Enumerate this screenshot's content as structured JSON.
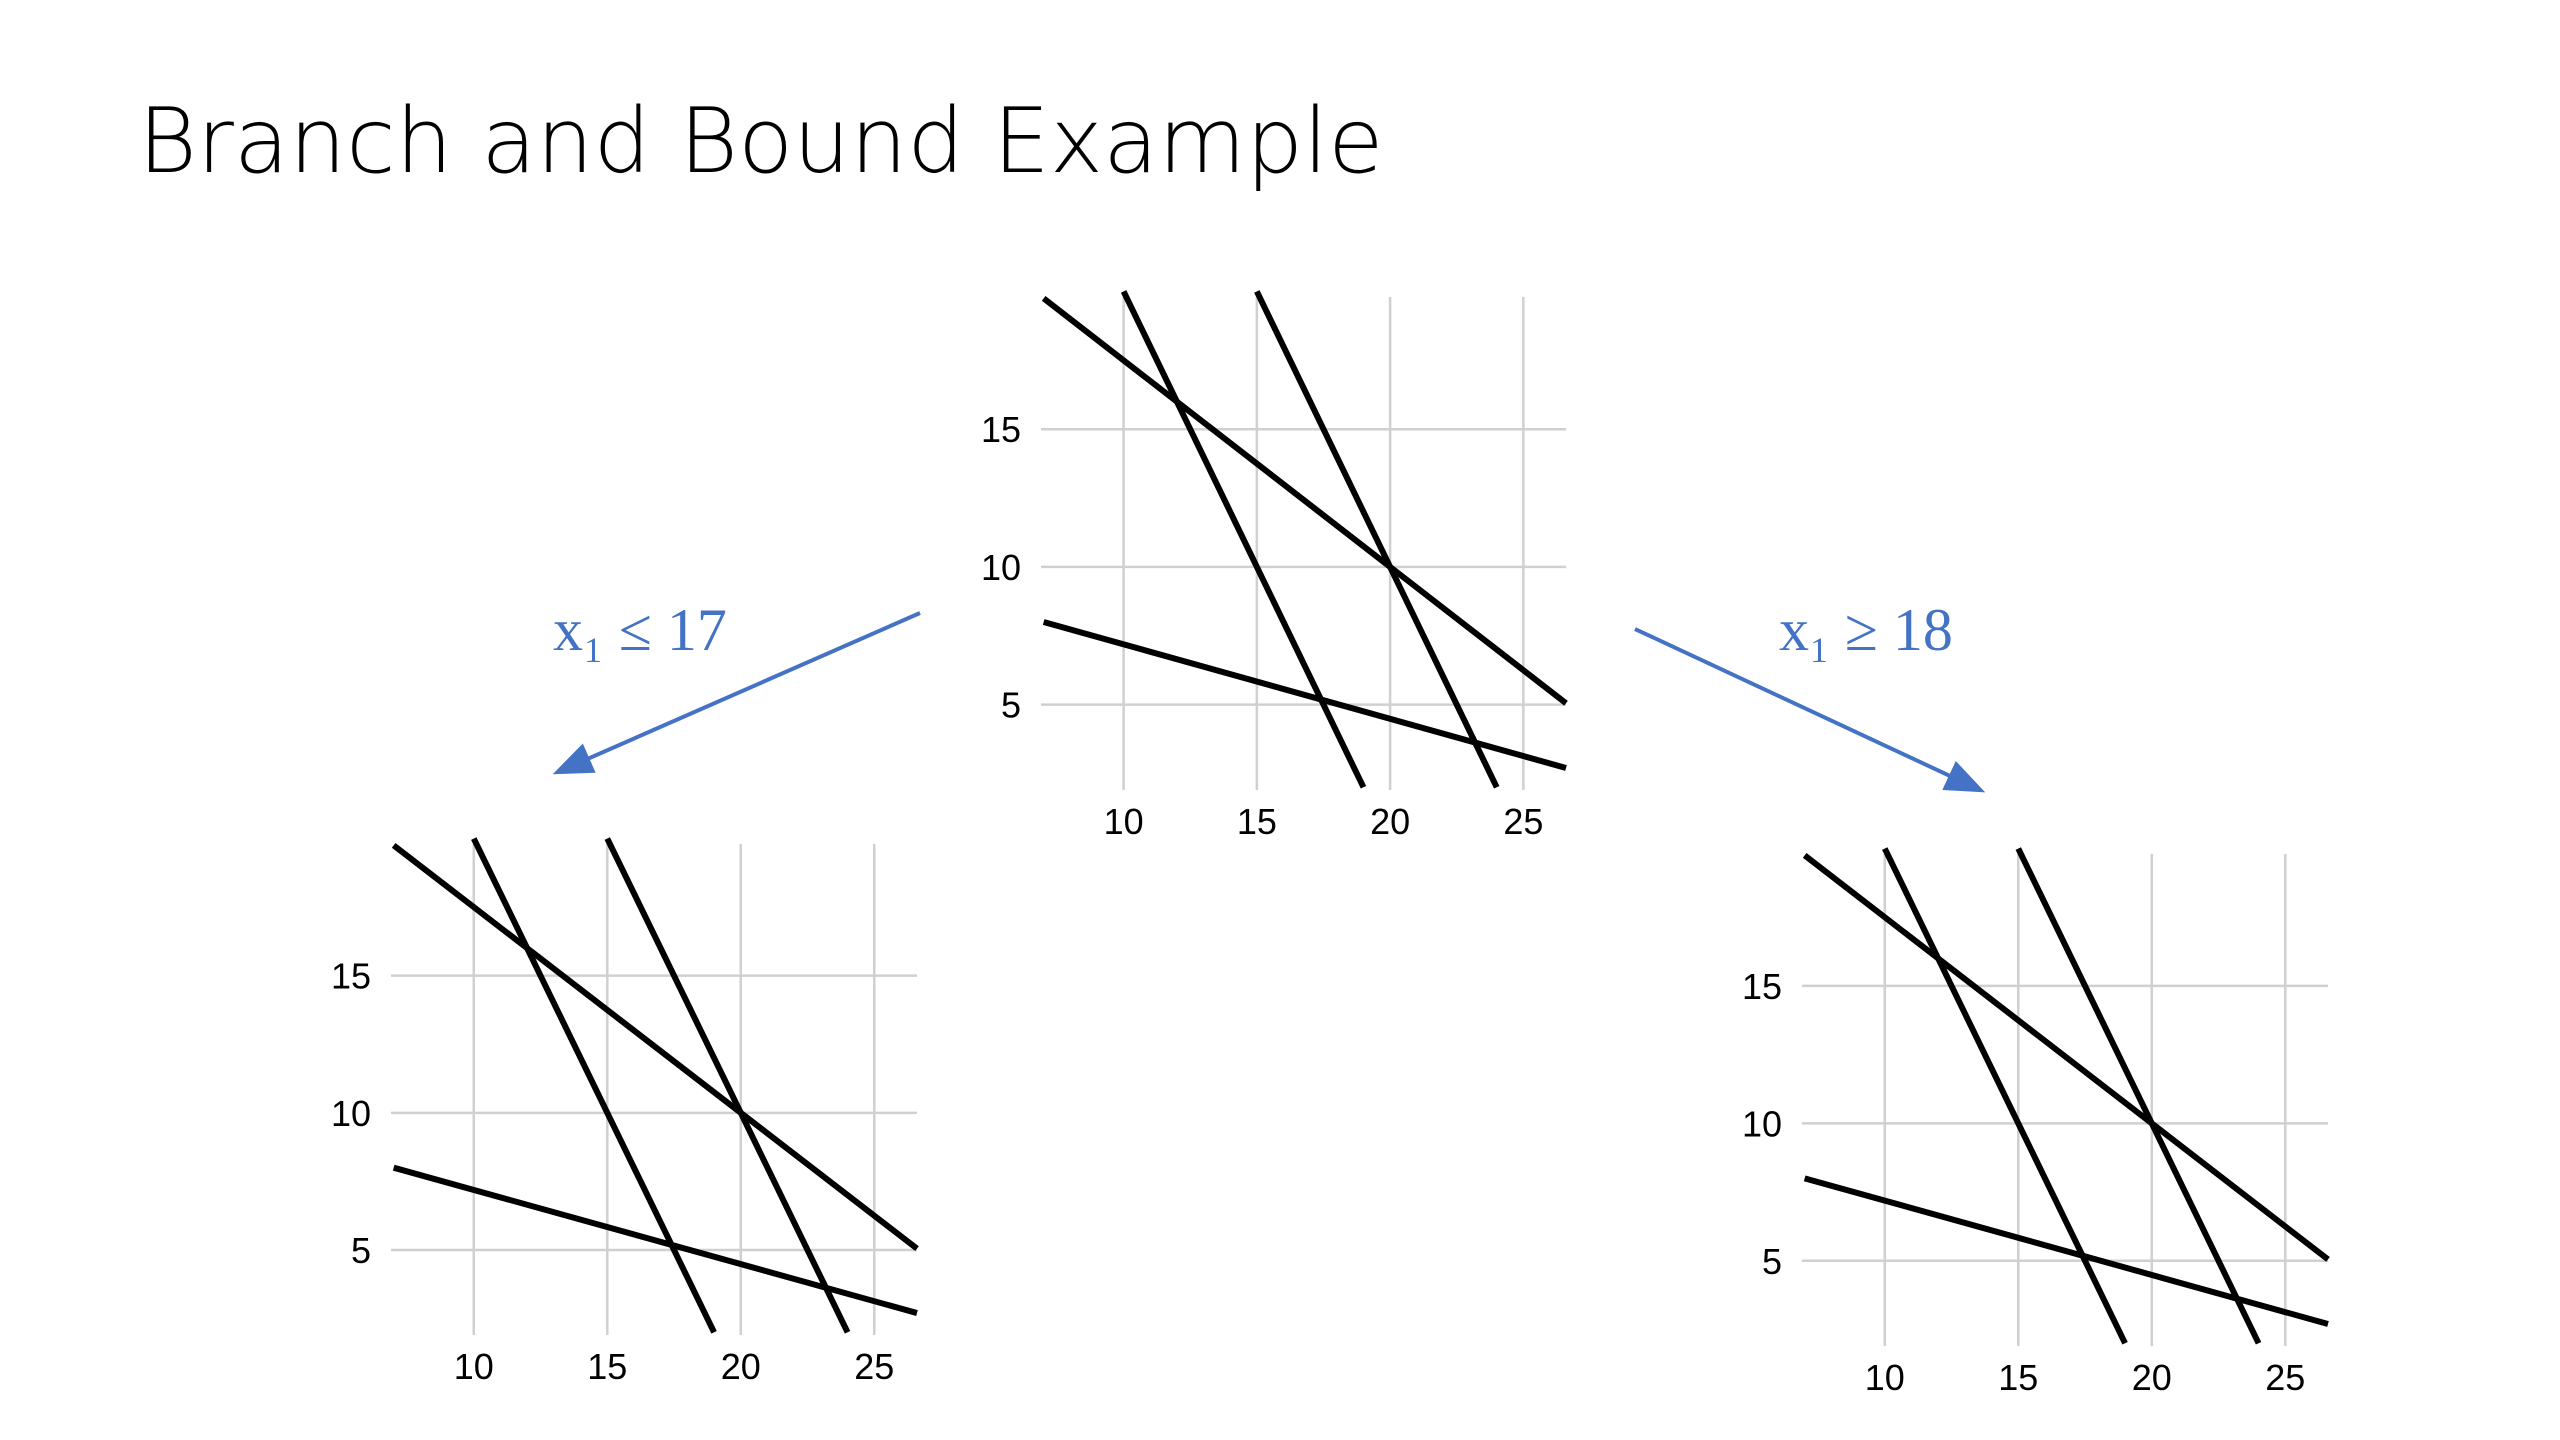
{
  "title": "Branch and Bound Example",
  "branches": [
    "x₁ ≤ 17",
    "x₁ ≥ 18"
  ],
  "chart_data": [
    {
      "type": "line",
      "xlim": [
        6.9,
        26.6
      ],
      "ylim": [
        1.9,
        19.8
      ],
      "xticks": [
        10,
        15,
        20,
        25
      ],
      "yticks": [
        5,
        10,
        15
      ],
      "grid": true,
      "grid_color": "#d0d0d0",
      "series": [
        {
          "color": "#000000",
          "x": [
            7,
            26.6
          ],
          "values": [
            19.75,
            5.05
          ]
        },
        {
          "color": "#000000",
          "x": [
            10,
            19
          ],
          "values": [
            20,
            2
          ]
        },
        {
          "color": "#000000",
          "x": [
            15,
            24
          ],
          "values": [
            20,
            2
          ]
        },
        {
          "color": "#000000",
          "x": [
            7,
            26.6
          ],
          "values": [
            8,
            2.7
          ]
        }
      ]
    },
    {
      "type": "line",
      "xlim": [
        6.9,
        26.6
      ],
      "ylim": [
        1.9,
        19.8
      ],
      "xticks": [
        10,
        15,
        20,
        25
      ],
      "yticks": [
        5,
        10,
        15
      ],
      "grid": true,
      "grid_color": "#d0d0d0",
      "series": [
        {
          "color": "#000000",
          "x": [
            7,
            26.6
          ],
          "values": [
            19.75,
            5.05
          ]
        },
        {
          "color": "#000000",
          "x": [
            10,
            19
          ],
          "values": [
            20,
            2
          ]
        },
        {
          "color": "#000000",
          "x": [
            15,
            24
          ],
          "values": [
            20,
            2
          ]
        },
        {
          "color": "#000000",
          "x": [
            7,
            26.6
          ],
          "values": [
            8,
            2.7
          ]
        }
      ]
    },
    {
      "type": "line",
      "xlim": [
        6.9,
        26.6
      ],
      "ylim": [
        1.9,
        19.8
      ],
      "xticks": [
        10,
        15,
        20,
        25
      ],
      "yticks": [
        5,
        10,
        15
      ],
      "grid": true,
      "grid_color": "#d0d0d0",
      "series": [
        {
          "color": "#000000",
          "x": [
            7,
            26.6
          ],
          "values": [
            19.75,
            5.05
          ]
        },
        {
          "color": "#000000",
          "x": [
            10,
            19
          ],
          "values": [
            20,
            2
          ]
        },
        {
          "color": "#000000",
          "x": [
            15,
            24
          ],
          "values": [
            20,
            2
          ]
        },
        {
          "color": "#000000",
          "x": [
            7,
            26.6
          ],
          "values": [
            8,
            2.7
          ]
        }
      ]
    }
  ]
}
